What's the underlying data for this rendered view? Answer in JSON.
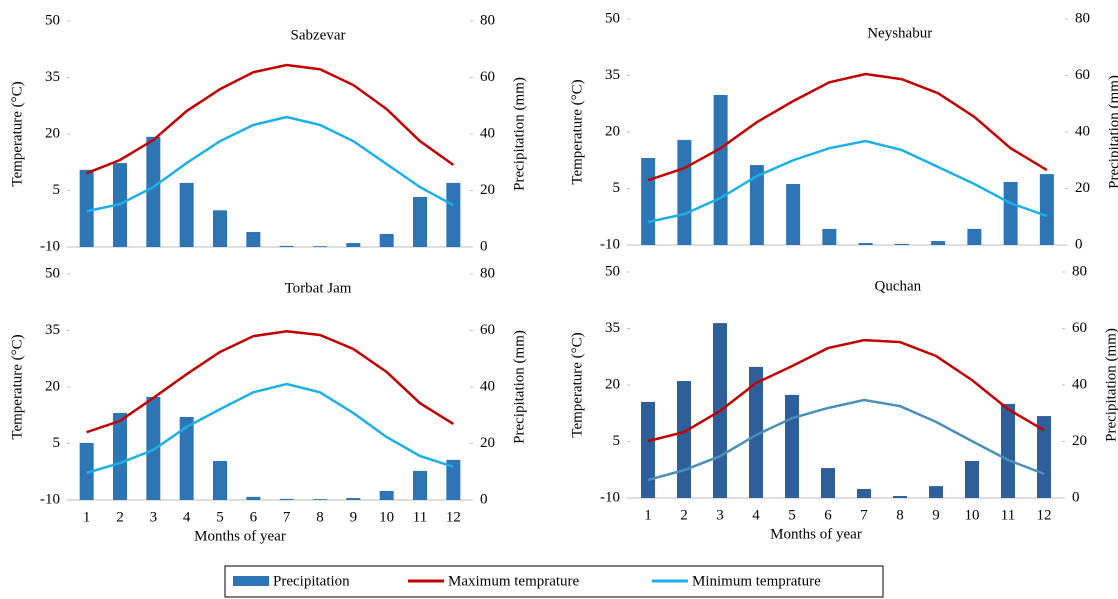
{
  "chart_data": [
    {
      "type": "combo",
      "title": "Sabzevar",
      "ylabel": "Temperature (°C)",
      "y2label": "Precipitation (mm)",
      "ylim": [
        -10,
        50
      ],
      "yticks": [
        -10,
        5,
        20,
        35,
        50
      ],
      "y2lim": [
        0,
        80
      ],
      "y2ticks": [
        0,
        20,
        40,
        60,
        80
      ],
      "series": [
        {
          "name": "Precipitation",
          "type": "bar",
          "axis": "y2",
          "color": "#2e75b6",
          "values": [
            27.3,
            29.7,
            39,
            22.7,
            13,
            5.3,
            0.4,
            0.3,
            1.4,
            4.6,
            17.7,
            22.7
          ]
        },
        {
          "name": "Maximum temprature",
          "type": "line",
          "color": "#c00000",
          "values": [
            9.6,
            13.1,
            18.4,
            26.1,
            31.9,
            36.4,
            38.3,
            37.2,
            33,
            26.6,
            18.1,
            11.8
          ]
        },
        {
          "name": "Minimum temprature",
          "type": "line",
          "color": "#1cb0e8",
          "values": [
            -0.5,
            1.4,
            5.9,
            12.3,
            18.1,
            22.4,
            24.5,
            22.4,
            18.1,
            12,
            5.9,
            1.1
          ]
        }
      ]
    },
    {
      "type": "combo",
      "title": "Neyshabur",
      "ylabel": "Temperature (°C)",
      "y2label": "Precipitation (mm)",
      "ylim": [
        -10,
        50
      ],
      "yticks": [
        -10,
        5,
        20,
        35,
        50
      ],
      "y2lim": [
        0,
        80
      ],
      "y2ticks": [
        0,
        20,
        40,
        60,
        80
      ],
      "series": [
        {
          "type": "bar",
          "axis": "y2",
          "color": "#2e75b6",
          "values": [
            30.8,
            37.2,
            53.1,
            28.3,
            21.6,
            5.7,
            0.7,
            0.4,
            1.4,
            5.7,
            22.3,
            25.1
          ]
        },
        {
          "type": "line",
          "color": "#c00000",
          "values": [
            7.2,
            10.4,
            15.7,
            22.6,
            28.2,
            33.2,
            35.4,
            34,
            30.3,
            24,
            15.7,
            9.9
          ]
        },
        {
          "type": "line",
          "color": "#1cb0e8",
          "values": [
            -3.9,
            -1.8,
            2.5,
            8.3,
            12.5,
            15.7,
            17.6,
            15.2,
            10.7,
            6.2,
            1.1,
            -2.3
          ]
        }
      ]
    },
    {
      "type": "combo",
      "title": "Torbat Jam",
      "xlabel": "Months of year",
      "categories": [
        "1",
        "2",
        "3",
        "4",
        "5",
        "6",
        "7",
        "8",
        "9",
        "10",
        "11",
        "12"
      ],
      "ylabel": "Temperature (°C)",
      "y2label": "Precipitation (mm)",
      "ylim": [
        -10,
        50
      ],
      "yticks": [
        -10,
        5,
        20,
        35,
        50
      ],
      "y2lim": [
        0,
        80
      ],
      "y2ticks": [
        0,
        20,
        40,
        60,
        80
      ],
      "series": [
        {
          "type": "bar",
          "axis": "y2",
          "color": "#2e75b6",
          "values": [
            20.2,
            30.8,
            36.5,
            29.4,
            13.8,
            1.1,
            0.4,
            0.3,
            0.7,
            3.2,
            10.3,
            14.2
          ]
        },
        {
          "type": "line",
          "color": "#c00000",
          "values": [
            8,
            11,
            17.1,
            23.4,
            29.3,
            33.5,
            34.8,
            33.8,
            30.1,
            24,
            15.7,
            10.2
          ]
        },
        {
          "type": "line",
          "color": "#1cb0e8",
          "values": [
            -2.8,
            -0.2,
            3.3,
            9.4,
            14.1,
            18.6,
            20.8,
            18.6,
            13.1,
            6.7,
            1.7,
            -1.2
          ]
        }
      ]
    },
    {
      "type": "combo",
      "title": "Quchan",
      "xlabel": "Months of year",
      "categories": [
        "1",
        "2",
        "3",
        "4",
        "5",
        "6",
        "7",
        "8",
        "9",
        "10",
        "11",
        "12"
      ],
      "ylabel": "Temperature (°C)",
      "y2label": "Precipitation (mm)",
      "ylim": [
        -10,
        50
      ],
      "yticks": [
        -10,
        5,
        20,
        35,
        50
      ],
      "y2lim": [
        0,
        80
      ],
      "y2ticks": [
        0,
        20,
        40,
        60,
        80
      ],
      "series": [
        {
          "type": "bar",
          "axis": "y2",
          "color": "#2e5f9a",
          "values": [
            34,
            41.4,
            61.9,
            46.4,
            36.5,
            10.6,
            3.2,
            0.7,
            4.2,
            13.1,
            33.3,
            29
          ]
        },
        {
          "type": "line",
          "color": "#c00000",
          "values": [
            5.1,
            7.5,
            13.1,
            20.5,
            25,
            29.8,
            31.9,
            31.4,
            27.7,
            21.3,
            13.6,
            8
          ]
        },
        {
          "type": "line",
          "color": "#4a90b8",
          "values": [
            -5.2,
            -2.6,
            1.1,
            6.7,
            11.2,
            13.9,
            16,
            14.4,
            10.2,
            5.1,
            0.1,
            -3.6
          ]
        }
      ]
    }
  ]
}
